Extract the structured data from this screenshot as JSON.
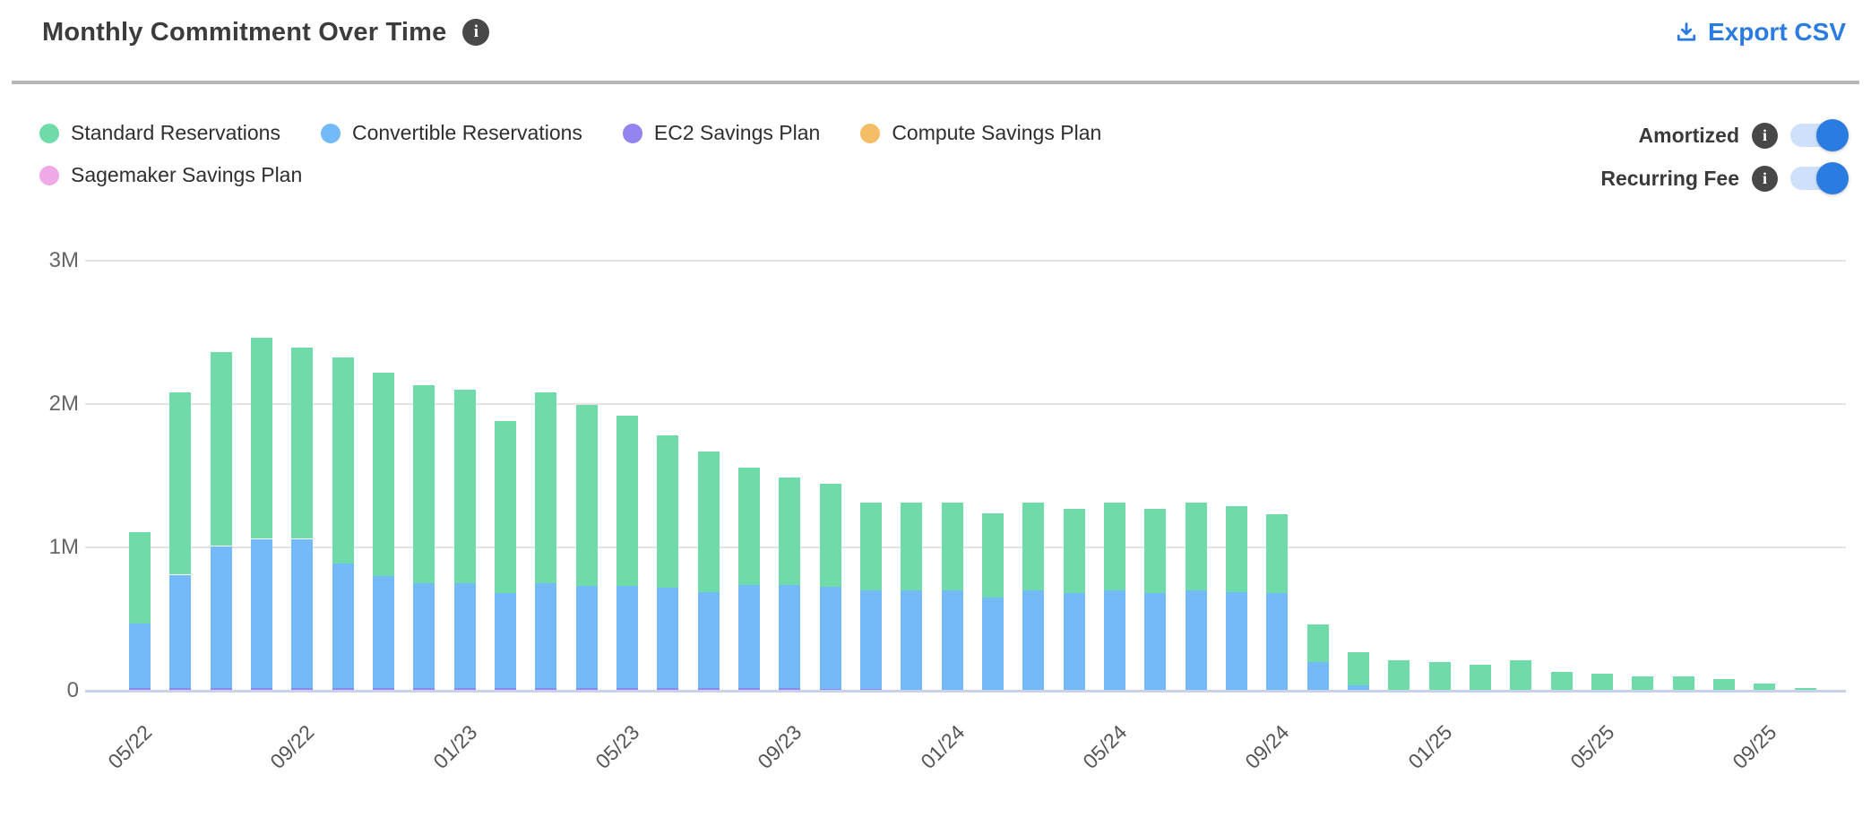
{
  "header": {
    "title": "Monthly Commitment Over Time",
    "export_label": "Export CSV"
  },
  "controls": {
    "toggles": [
      {
        "label": "Amortized",
        "state": "on"
      },
      {
        "label": "Recurring Fee",
        "state": "on"
      }
    ]
  },
  "colors": {
    "accent_blue": "#2B7CE0",
    "toggle_track": "#CFE1FA",
    "divider": "#B5B5B5",
    "grid": "#E4E4E4",
    "axis_line": "#C9D1EA",
    "title_text": "#3C3C3C",
    "axis_text": "#666666",
    "tick_text": "#555555",
    "info_icon_bg": "#484848"
  },
  "chart_data": {
    "type": "bar",
    "stacked": true,
    "unit": "M (USD, millions)",
    "title": "Monthly Commitment Over Time",
    "xlabel": "",
    "ylabel": "",
    "ylim": [
      0,
      3
    ],
    "grid": true,
    "legend_position": "top-left",
    "x": [
      "05/22",
      "06/22",
      "07/22",
      "08/22",
      "09/22",
      "10/22",
      "11/22",
      "12/22",
      "01/23",
      "02/23",
      "03/23",
      "04/23",
      "05/23",
      "06/23",
      "07/23",
      "08/23",
      "09/23",
      "10/23",
      "11/23",
      "12/23",
      "01/24",
      "02/24",
      "03/24",
      "04/24",
      "05/24",
      "06/24",
      "07/24",
      "08/24",
      "09/24",
      "10/24",
      "11/24",
      "12/24",
      "01/25",
      "02/25",
      "03/25",
      "04/25",
      "05/25",
      "06/25",
      "07/25",
      "08/25",
      "09/25",
      "10/25"
    ],
    "x_tick_every": 4,
    "x_tick_labels": [
      "05/22",
      "09/22",
      "01/23",
      "05/23",
      "09/23",
      "01/24",
      "05/24",
      "09/24",
      "01/25",
      "05/25",
      "09/25"
    ],
    "y_ticks": [
      {
        "label": "0",
        "value": 0
      },
      {
        "label": "1M",
        "value": 1
      },
      {
        "label": "2M",
        "value": 2
      },
      {
        "label": "3M",
        "value": 3
      }
    ],
    "series": [
      {
        "name": "Standard Reservations",
        "color": "#6FDBA9",
        "values": [
          0.64,
          1.27,
          1.35,
          1.4,
          1.33,
          1.44,
          1.42,
          1.38,
          1.35,
          1.2,
          1.33,
          1.26,
          1.19,
          1.06,
          0.98,
          0.82,
          0.75,
          0.72,
          0.61,
          0.61,
          0.61,
          0.59,
          0.61,
          0.59,
          0.61,
          0.59,
          0.61,
          0.6,
          0.55,
          0.26,
          0.23,
          0.21,
          0.2,
          0.18,
          0.21,
          0.13,
          0.12,
          0.1,
          0.1,
          0.08,
          0.05,
          0.02
        ]
      },
      {
        "name": "Convertible Reservations",
        "color": "#75BAF8",
        "values": [
          0.45,
          0.79,
          0.99,
          1.04,
          1.04,
          0.87,
          0.78,
          0.73,
          0.73,
          0.66,
          0.73,
          0.71,
          0.71,
          0.7,
          0.67,
          0.72,
          0.72,
          0.71,
          0.69,
          0.7,
          0.7,
          0.65,
          0.7,
          0.68,
          0.7,
          0.68,
          0.7,
          0.69,
          0.68,
          0.2,
          0.04,
          0,
          0,
          0,
          0,
          0,
          0,
          0,
          0,
          0,
          0,
          0
        ]
      },
      {
        "name": "EC2 Savings Plan",
        "color": "#9484EF",
        "values": [
          0.02,
          0.02,
          0.02,
          0.02,
          0.02,
          0.02,
          0.02,
          0.02,
          0.02,
          0.02,
          0.02,
          0.02,
          0.02,
          0.02,
          0.02,
          0.02,
          0.02,
          0.015,
          0.01,
          0,
          0,
          0,
          0,
          0,
          0,
          0,
          0,
          0,
          0,
          0,
          0,
          0,
          0,
          0,
          0,
          0,
          0,
          0,
          0,
          0,
          0,
          0
        ]
      },
      {
        "name": "Compute Savings Plan",
        "color": "#F4BE66",
        "values": [
          0,
          0,
          0,
          0,
          0,
          0,
          0,
          0,
          0,
          0,
          0,
          0,
          0,
          0,
          0,
          0,
          0,
          0,
          0,
          0,
          0,
          0,
          0,
          0,
          0,
          0,
          0,
          0,
          0,
          0,
          0,
          0,
          0,
          0,
          0,
          0,
          0,
          0,
          0,
          0,
          0,
          0
        ]
      },
      {
        "name": "Sagemaker Savings Plan",
        "color": "#EFA9E6",
        "values": [
          0,
          0,
          0,
          0,
          0,
          0,
          0,
          0,
          0,
          0,
          0,
          0,
          0,
          0,
          0,
          0,
          0,
          0,
          0,
          0,
          0,
          0,
          0,
          0,
          0,
          0,
          0,
          0,
          0,
          0,
          0,
          0,
          0,
          0,
          0,
          0,
          0,
          0,
          0,
          0,
          0,
          0
        ]
      }
    ],
    "stack_order_bottom_to_top": [
      "Sagemaker Savings Plan",
      "Compute Savings Plan",
      "EC2 Savings Plan",
      "Convertible Reservations",
      "Standard Reservations"
    ]
  }
}
